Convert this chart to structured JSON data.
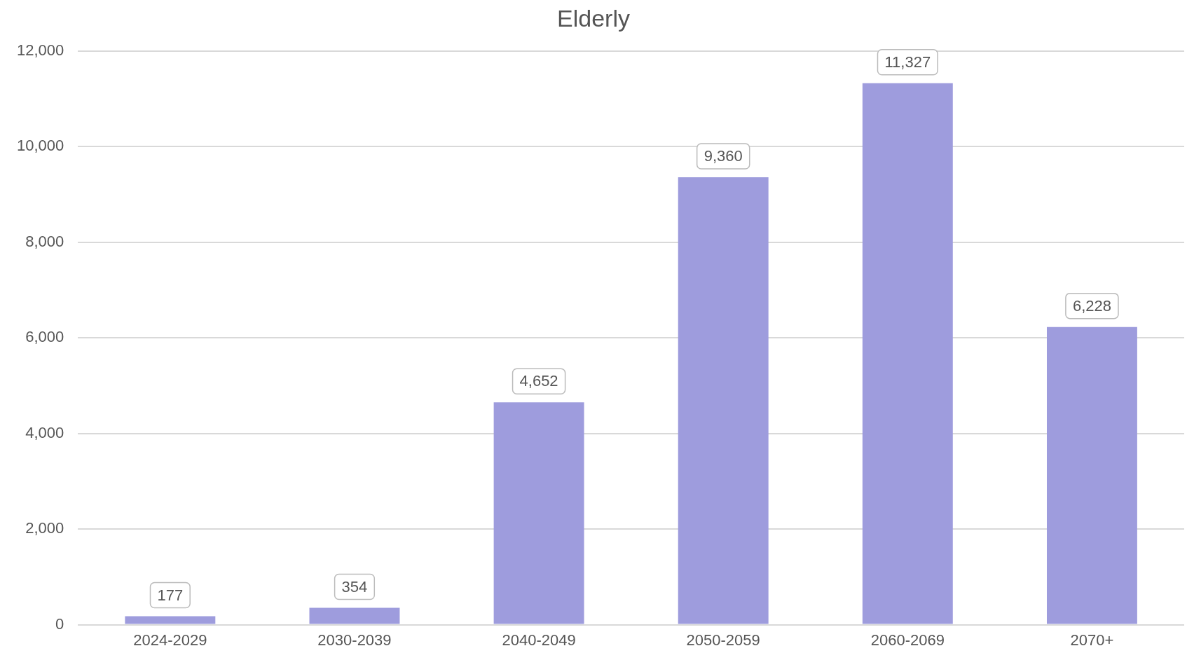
{
  "chart_data": {
    "type": "bar",
    "title": "Elderly",
    "categories": [
      "2024-2029",
      "2030-2039",
      "2040-2049",
      "2050-2059",
      "2060-2069",
      "2070+"
    ],
    "values": [
      177,
      354,
      4652,
      9360,
      11327,
      6228
    ],
    "value_labels": [
      "177",
      "354",
      "4,652",
      "9,360",
      "11,327",
      "6,228"
    ],
    "color": "#9e9cdd",
    "ylim": [
      0,
      12000
    ],
    "yticks": [
      0,
      {
        "value": 2000,
        "label": "2,000"
      },
      {
        "value": 4000,
        "label": "4,000"
      },
      {
        "value": 6000,
        "label": "6,000"
      },
      {
        "value": 8000,
        "label": "8,000"
      },
      {
        "value": 10000,
        "label": "10,000"
      },
      {
        "value": 12000,
        "label": "12,000"
      }
    ],
    "grid": "y",
    "legend": false
  }
}
